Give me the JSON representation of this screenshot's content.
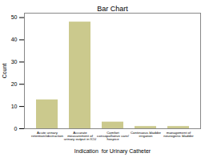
{
  "chart_data": {
    "type": "bar",
    "title": "Bar Chart",
    "xlabel": "Indication  for Urinary Catheter",
    "ylabel": "Count",
    "categories": [
      "Acute urinary\nretention/obstruction",
      "Accurate\nmeasurement of\nurinary output in ICU",
      "Comfort\nconsopalliative care/\nhospice",
      "Continuous bladder\nirrigation",
      "management of\nneurogenic bladder"
    ],
    "values": [
      13,
      48,
      3,
      1,
      1
    ],
    "color": "#cbc98d",
    "ylim": [
      0,
      52
    ],
    "yticks": [
      0,
      10,
      20,
      30,
      40,
      50
    ],
    "grid": false
  }
}
